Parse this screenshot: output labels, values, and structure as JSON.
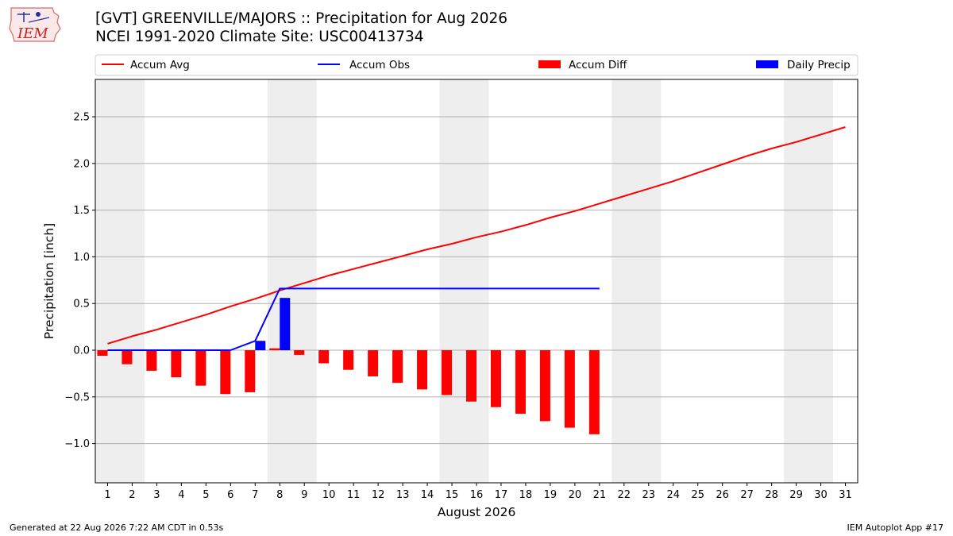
{
  "header": {
    "title_line1": "[GVT] GREENVILLE/MAJORS :: Precipitation for Aug 2026",
    "title_line2": "NCEI 1991-2020 Climate Site: USC00413734"
  },
  "logo": {
    "text": "IEM"
  },
  "footer": {
    "generated": "Generated at 22 Aug 2026 7:22 AM CDT in 0.53s",
    "app": "IEM Autoplot App #17"
  },
  "colors": {
    "avg": "#ff0000",
    "obs": "#0000ff",
    "diff": "#ff0000",
    "daily": "#0000ff",
    "weekend": "#eeeeee",
    "grid": "#b0b0b0"
  },
  "chart_data": {
    "type": "bar",
    "xlabel": "August 2026",
    "ylabel": "Precipitation [inch]",
    "xlim": [
      0.5,
      31.5
    ],
    "ylim": [
      -1.42,
      2.9
    ],
    "x_ticks": [
      1,
      2,
      3,
      4,
      5,
      6,
      7,
      8,
      9,
      10,
      11,
      12,
      13,
      14,
      15,
      16,
      17,
      18,
      19,
      20,
      21,
      22,
      23,
      24,
      25,
      26,
      27,
      28,
      29,
      30,
      31
    ],
    "y_ticks": [
      -1.0,
      -0.5,
      0.0,
      0.5,
      1.0,
      1.5,
      2.0,
      2.5
    ],
    "y_tick_labels": [
      "−1.0",
      "−0.5",
      "0.0",
      "0.5",
      "1.0",
      "1.5",
      "2.0",
      "2.5"
    ],
    "grid": "horizontal",
    "legend": {
      "placement": "top",
      "entries": [
        "Accum Avg",
        "Accum Obs",
        "Accum Diff",
        "Daily Precip"
      ]
    },
    "weekend_shading": [
      [
        0.5,
        2.5
      ],
      [
        7.5,
        9.5
      ],
      [
        14.5,
        16.5
      ],
      [
        21.5,
        23.5
      ],
      [
        28.5,
        30.5
      ]
    ],
    "series": [
      {
        "name": "Accum Avg",
        "kind": "line",
        "x": [
          1,
          2,
          3,
          4,
          5,
          6,
          7,
          8,
          9,
          10,
          11,
          12,
          13,
          14,
          15,
          16,
          17,
          18,
          19,
          20,
          21,
          22,
          23,
          24,
          25,
          26,
          27,
          28,
          29,
          30,
          31
        ],
        "values": [
          0.07,
          0.15,
          0.22,
          0.3,
          0.38,
          0.47,
          0.55,
          0.64,
          0.72,
          0.8,
          0.87,
          0.94,
          1.01,
          1.08,
          1.14,
          1.21,
          1.27,
          1.34,
          1.42,
          1.49,
          1.57,
          1.65,
          1.73,
          1.81,
          1.9,
          1.99,
          2.08,
          2.16,
          2.23,
          2.31,
          2.39
        ]
      },
      {
        "name": "Accum Obs",
        "kind": "line",
        "x": [
          1,
          2,
          3,
          4,
          5,
          6,
          7,
          8,
          9,
          10,
          11,
          12,
          13,
          14,
          15,
          16,
          17,
          18,
          19,
          20,
          21
        ],
        "values": [
          0.0,
          0.0,
          0.0,
          0.0,
          0.0,
          0.0,
          0.1,
          0.66,
          0.66,
          0.66,
          0.66,
          0.66,
          0.66,
          0.66,
          0.66,
          0.66,
          0.66,
          0.66,
          0.66,
          0.66,
          0.66
        ]
      },
      {
        "name": "Accum Diff",
        "kind": "bar",
        "x": [
          1,
          2,
          3,
          4,
          5,
          6,
          7,
          8,
          9,
          10,
          11,
          12,
          13,
          14,
          15,
          16,
          17,
          18,
          19,
          20,
          21
        ],
        "values": [
          -0.06,
          -0.15,
          -0.22,
          -0.29,
          -0.38,
          -0.47,
          -0.45,
          0.02,
          -0.05,
          -0.14,
          -0.21,
          -0.28,
          -0.35,
          -0.42,
          -0.48,
          -0.55,
          -0.61,
          -0.68,
          -0.76,
          -0.83,
          -0.9
        ]
      },
      {
        "name": "Daily Precip",
        "kind": "bar",
        "x": [
          1,
          2,
          3,
          4,
          5,
          6,
          7,
          8,
          9,
          10,
          11,
          12,
          13,
          14,
          15,
          16,
          17,
          18,
          19,
          20,
          21
        ],
        "values": [
          0,
          0,
          0,
          0,
          0,
          0,
          0.1,
          0.56,
          0,
          0,
          0,
          0,
          0,
          0,
          0,
          0,
          0,
          0,
          0,
          0,
          0
        ]
      }
    ]
  }
}
